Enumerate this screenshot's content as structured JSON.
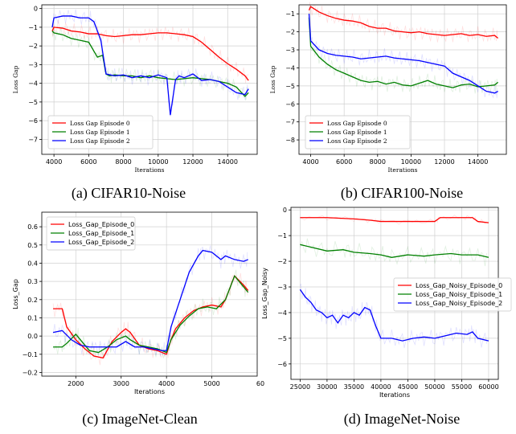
{
  "figure": {
    "captions": [
      "(a) CIFAR10-Noise",
      "(b) CIFAR100-Noise",
      "(c) ImageNet-Clean",
      "(d) ImageNet-Noise"
    ]
  },
  "chart_data": [
    {
      "type": "line",
      "xlabel": "Iterations",
      "ylabel": "Loss Gap",
      "xlim": [
        3300,
        15700
      ],
      "ylim": [
        -7.8,
        0.2
      ],
      "xticks": [
        4000,
        6000,
        8000,
        10000,
        12000,
        14000
      ],
      "yticks": [
        0,
        -1,
        -2,
        -3,
        -4,
        -5,
        -6,
        -7
      ],
      "grid": true,
      "legend_placement": "lower-left",
      "series": [
        {
          "name": "Loss Gap Episode 0",
          "color": "#ff0000",
          "x": [
            3900,
            4000,
            4500,
            5000,
            5500,
            6000,
            6500,
            7000,
            7500,
            8000,
            8500,
            9000,
            9500,
            10000,
            10500,
            11000,
            11500,
            12000,
            12500,
            13000,
            13500,
            14000,
            14500,
            15000,
            15200
          ],
          "y": [
            -1.2,
            -1.0,
            -1.05,
            -1.2,
            -1.25,
            -1.35,
            -1.35,
            -1.45,
            -1.5,
            -1.45,
            -1.4,
            -1.4,
            -1.35,
            -1.3,
            -1.3,
            -1.35,
            -1.4,
            -1.5,
            -1.8,
            -2.2,
            -2.6,
            -2.95,
            -3.25,
            -3.6,
            -3.85
          ]
        },
        {
          "name": "Loss Gap Episode 1",
          "color": "#008000",
          "x": [
            3900,
            4000,
            4500,
            5000,
            5500,
            6000,
            6500,
            6800,
            7000,
            7200,
            7500,
            8000,
            8500,
            9000,
            9500,
            10000,
            10500,
            11000,
            11500,
            12000,
            12500,
            13000,
            13500,
            14000,
            14500,
            15000,
            15200
          ],
          "y": [
            -1.2,
            -1.3,
            -1.4,
            -1.6,
            -1.7,
            -1.8,
            -2.6,
            -2.5,
            -3.5,
            -3.6,
            -3.55,
            -3.6,
            -3.6,
            -3.7,
            -3.6,
            -3.7,
            -3.75,
            -3.8,
            -3.75,
            -3.7,
            -3.75,
            -3.8,
            -3.9,
            -4.0,
            -4.2,
            -4.7,
            -4.5
          ]
        },
        {
          "name": "Loss Gap Episode 2",
          "color": "#0000ff",
          "x": [
            3900,
            4000,
            4500,
            5000,
            5500,
            6000,
            6300,
            6700,
            7000,
            7500,
            8000,
            8500,
            9000,
            9500,
            10000,
            10500,
            10700,
            11000,
            11200,
            11500,
            12000,
            12500,
            13000,
            13500,
            14000,
            14500,
            15000,
            15200
          ],
          "y": [
            -1.0,
            -0.5,
            -0.4,
            -0.4,
            -0.5,
            -0.5,
            -0.7,
            -1.7,
            -3.5,
            -3.6,
            -3.55,
            -3.7,
            -3.6,
            -3.7,
            -3.55,
            -3.7,
            -5.7,
            -3.8,
            -3.6,
            -3.7,
            -3.5,
            -3.85,
            -3.8,
            -3.9,
            -4.2,
            -4.5,
            -4.6,
            -4.3
          ]
        }
      ]
    },
    {
      "type": "line",
      "xlabel": "Iterations",
      "ylabel": "Loss Gap",
      "xlim": [
        3300,
        15700
      ],
      "ylim": [
        -8.8,
        -0.5
      ],
      "xticks": [
        4000,
        6000,
        8000,
        10000,
        12000,
        14000
      ],
      "yticks": [
        -1,
        -2,
        -3,
        -4,
        -5,
        -6,
        -7,
        -8
      ],
      "grid": true,
      "legend_placement": "lower-left",
      "series": [
        {
          "name": "Loss Gap Episode 0",
          "color": "#ff0000",
          "x": [
            3900,
            4000,
            4500,
            5000,
            5500,
            6000,
            6500,
            7000,
            7500,
            8000,
            8500,
            9000,
            9500,
            10000,
            10500,
            11000,
            11500,
            12000,
            12500,
            13000,
            13500,
            14000,
            14500,
            15000,
            15200
          ],
          "y": [
            -0.8,
            -0.6,
            -0.9,
            -1.1,
            -1.25,
            -1.35,
            -1.4,
            -1.5,
            -1.7,
            -1.8,
            -1.8,
            -1.95,
            -2.0,
            -2.05,
            -2.0,
            -2.1,
            -2.15,
            -2.2,
            -2.15,
            -2.1,
            -2.2,
            -2.15,
            -2.25,
            -2.2,
            -2.35
          ]
        },
        {
          "name": "Loss Gap Episode 1",
          "color": "#008000",
          "x": [
            3900,
            4000,
            4500,
            5000,
            5500,
            6000,
            6500,
            7000,
            7500,
            8000,
            8500,
            9000,
            9500,
            10000,
            10500,
            11000,
            11500,
            12000,
            12500,
            13000,
            13500,
            14000,
            14500,
            15000,
            15200
          ],
          "y": [
            -1.2,
            -2.8,
            -3.4,
            -3.8,
            -4.1,
            -4.3,
            -4.5,
            -4.7,
            -4.8,
            -4.75,
            -4.9,
            -4.8,
            -4.95,
            -5.0,
            -4.85,
            -4.7,
            -4.9,
            -5.0,
            -5.1,
            -4.95,
            -4.9,
            -5.05,
            -5.0,
            -4.95,
            -4.8
          ]
        },
        {
          "name": "Loss Gap Episode 2",
          "color": "#0000ff",
          "x": [
            3900,
            4000,
            4500,
            5000,
            5500,
            6000,
            6500,
            7000,
            7500,
            8000,
            8500,
            9000,
            9500,
            10000,
            10500,
            11000,
            11500,
            12000,
            12500,
            13000,
            13500,
            14000,
            14500,
            15000,
            15200
          ],
          "y": [
            -1.0,
            -2.5,
            -3.0,
            -3.2,
            -3.3,
            -3.35,
            -3.4,
            -3.5,
            -3.45,
            -3.4,
            -3.35,
            -3.45,
            -3.5,
            -3.55,
            -3.6,
            -3.7,
            -3.8,
            -3.9,
            -4.3,
            -4.5,
            -4.7,
            -5.0,
            -5.3,
            -5.4,
            -5.3
          ]
        }
      ]
    },
    {
      "type": "line",
      "xlabel": "Iterations",
      "ylabel": "Loss_Gap",
      "xlim": [
        1250,
        6000
      ],
      "ylim": [
        -0.22,
        0.68
      ],
      "xticks": [
        2000,
        3000,
        4000,
        5000
      ],
      "xtick_labels": [
        "2000",
        "3000",
        "4000",
        "5000",
        "60"
      ],
      "yticks": [
        0.6,
        0.5,
        0.4,
        0.3,
        0.2,
        0.1,
        0.0,
        -0.1,
        -0.2
      ],
      "grid": true,
      "legend_placement": "upper-left",
      "series": [
        {
          "name": "Loss_Gap_Episode_0",
          "color": "#ff0000",
          "x": [
            1500,
            1700,
            1800,
            2000,
            2200,
            2400,
            2600,
            2800,
            3000,
            3100,
            3200,
            3400,
            3600,
            3800,
            4000,
            4100,
            4200,
            4400,
            4600,
            4800,
            5000,
            5200,
            5300,
            5500,
            5700,
            5800
          ],
          "y": [
            0.15,
            0.15,
            0.05,
            -0.02,
            -0.07,
            -0.11,
            -0.12,
            -0.03,
            0.02,
            0.04,
            0.02,
            -0.05,
            -0.07,
            -0.08,
            -0.1,
            -0.02,
            0.04,
            0.1,
            0.14,
            0.16,
            0.17,
            0.16,
            0.2,
            0.33,
            0.28,
            0.25
          ]
        },
        {
          "name": "Loss_Gap_Episode_1",
          "color": "#008000",
          "x": [
            1500,
            1700,
            1800,
            2000,
            2100,
            2300,
            2500,
            2700,
            2900,
            3100,
            3200,
            3400,
            3600,
            3800,
            4000,
            4100,
            4300,
            4500,
            4700,
            4900,
            5100,
            5300,
            5500,
            5700,
            5800
          ],
          "y": [
            -0.06,
            -0.06,
            -0.04,
            0.01,
            -0.02,
            -0.08,
            -0.09,
            -0.06,
            -0.02,
            0.0,
            -0.02,
            -0.05,
            -0.06,
            -0.07,
            -0.09,
            -0.02,
            0.06,
            0.11,
            0.15,
            0.16,
            0.15,
            0.2,
            0.33,
            0.27,
            0.24
          ]
        },
        {
          "name": "Loss_Gap_Episode_2",
          "color": "#0000ff",
          "x": [
            1500,
            1700,
            1900,
            2100,
            2300,
            2500,
            2700,
            2900,
            3100,
            3300,
            3500,
            3700,
            3900,
            4000,
            4100,
            4300,
            4500,
            4700,
            4800,
            5000,
            5200,
            5300,
            5500,
            5700,
            5800
          ],
          "y": [
            0.02,
            0.03,
            -0.02,
            -0.05,
            -0.06,
            -0.06,
            -0.06,
            -0.06,
            -0.03,
            -0.06,
            -0.06,
            -0.07,
            -0.08,
            -0.08,
            0.05,
            0.2,
            0.35,
            0.44,
            0.47,
            0.46,
            0.42,
            0.44,
            0.42,
            0.41,
            0.42
          ]
        }
      ]
    },
    {
      "type": "line",
      "xlabel": "Iterations",
      "ylabel": "Loss_Gap_Noisy",
      "xlim": [
        23300,
        61800
      ],
      "ylim": [
        -6.6,
        0.1
      ],
      "xticks": [
        25000,
        30000,
        35000,
        40000,
        45000,
        50000,
        55000,
        60000
      ],
      "yticks": [
        0,
        -1,
        -2,
        -3,
        -4,
        -5,
        -6
      ],
      "grid": true,
      "legend_placement": "right",
      "series": [
        {
          "name": "Loss_Gap_Noisy_Episode_0",
          "color": "#ff0000",
          "x": [
            25000,
            30000,
            35000,
            38000,
            40000,
            45000,
            50000,
            51000,
            55000,
            57000,
            58000,
            60000
          ],
          "y": [
            -0.3,
            -0.3,
            -0.35,
            -0.4,
            -0.45,
            -0.45,
            -0.45,
            -0.3,
            -0.3,
            -0.3,
            -0.45,
            -0.5
          ]
        },
        {
          "name": "Loss_Gap_Noisy_Episode_1",
          "color": "#008000",
          "x": [
            25000,
            27000,
            30000,
            33000,
            35000,
            38000,
            40000,
            42000,
            45000,
            48000,
            50000,
            53000,
            55000,
            58000,
            60000
          ],
          "y": [
            -1.35,
            -1.45,
            -1.6,
            -1.55,
            -1.65,
            -1.7,
            -1.75,
            -1.85,
            -1.75,
            -1.8,
            -1.75,
            -1.7,
            -1.75,
            -1.75,
            -1.85
          ]
        },
        {
          "name": "Loss_Gap_Noisy_Episode_2",
          "color": "#0000ff",
          "x": [
            25000,
            26000,
            27000,
            28000,
            29000,
            30000,
            31000,
            32000,
            33000,
            34000,
            35000,
            36000,
            37000,
            38000,
            39000,
            40000,
            42000,
            44000,
            46000,
            48000,
            50000,
            52000,
            54000,
            56000,
            57000,
            58000,
            60000
          ],
          "y": [
            -3.1,
            -3.4,
            -3.6,
            -3.9,
            -4.0,
            -4.2,
            -4.1,
            -4.4,
            -4.1,
            -4.2,
            -4.0,
            -4.1,
            -3.8,
            -3.9,
            -4.5,
            -5.0,
            -5.0,
            -5.1,
            -5.0,
            -4.95,
            -5.0,
            -4.9,
            -4.8,
            -4.85,
            -4.75,
            -5.0,
            -5.1
          ]
        }
      ]
    }
  ]
}
